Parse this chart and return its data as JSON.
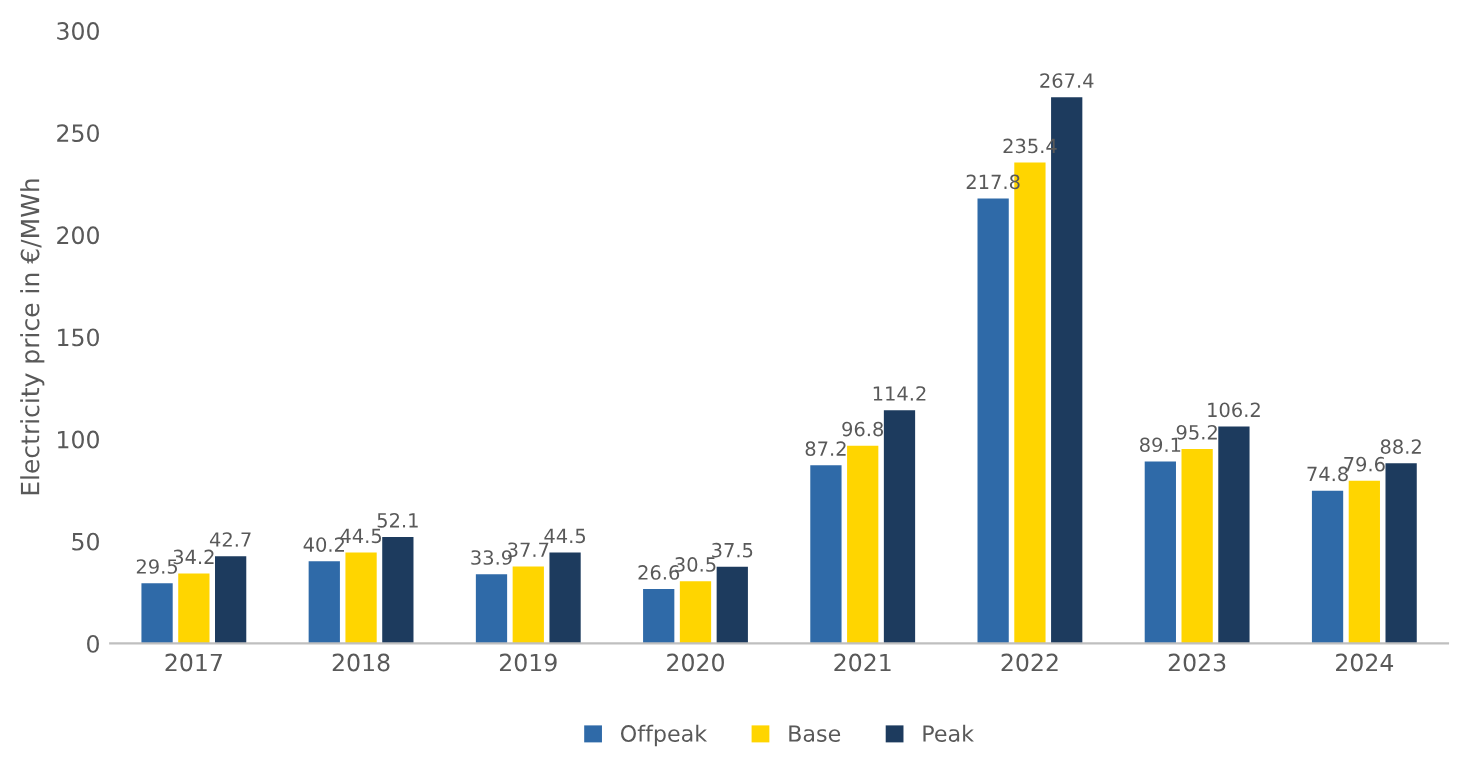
{
  "chart_data": {
    "type": "bar",
    "ylabel": "Electricity price in €/MWh",
    "categories": [
      "2017",
      "2018",
      "2019",
      "2020",
      "2021",
      "2022",
      "2023",
      "2024"
    ],
    "series": [
      {
        "name": "Offpeak",
        "color": "#2f6aa8",
        "values": [
          29.5,
          40.2,
          33.9,
          26.6,
          87.2,
          217.8,
          89.1,
          74.8
        ]
      },
      {
        "name": "Base",
        "color": "#ffd500",
        "values": [
          34.2,
          44.5,
          37.7,
          30.5,
          96.8,
          235.4,
          95.2,
          79.6
        ]
      },
      {
        "name": "Peak",
        "color": "#1d3b5e",
        "values": [
          42.7,
          52.1,
          44.5,
          37.5,
          114.2,
          267.4,
          106.2,
          88.2
        ]
      }
    ],
    "ylim": [
      0,
      300
    ],
    "yticks": [
      0,
      50,
      100,
      150,
      200,
      250,
      300
    ],
    "grid": false,
    "legend": "bottom",
    "data_labels": true
  }
}
